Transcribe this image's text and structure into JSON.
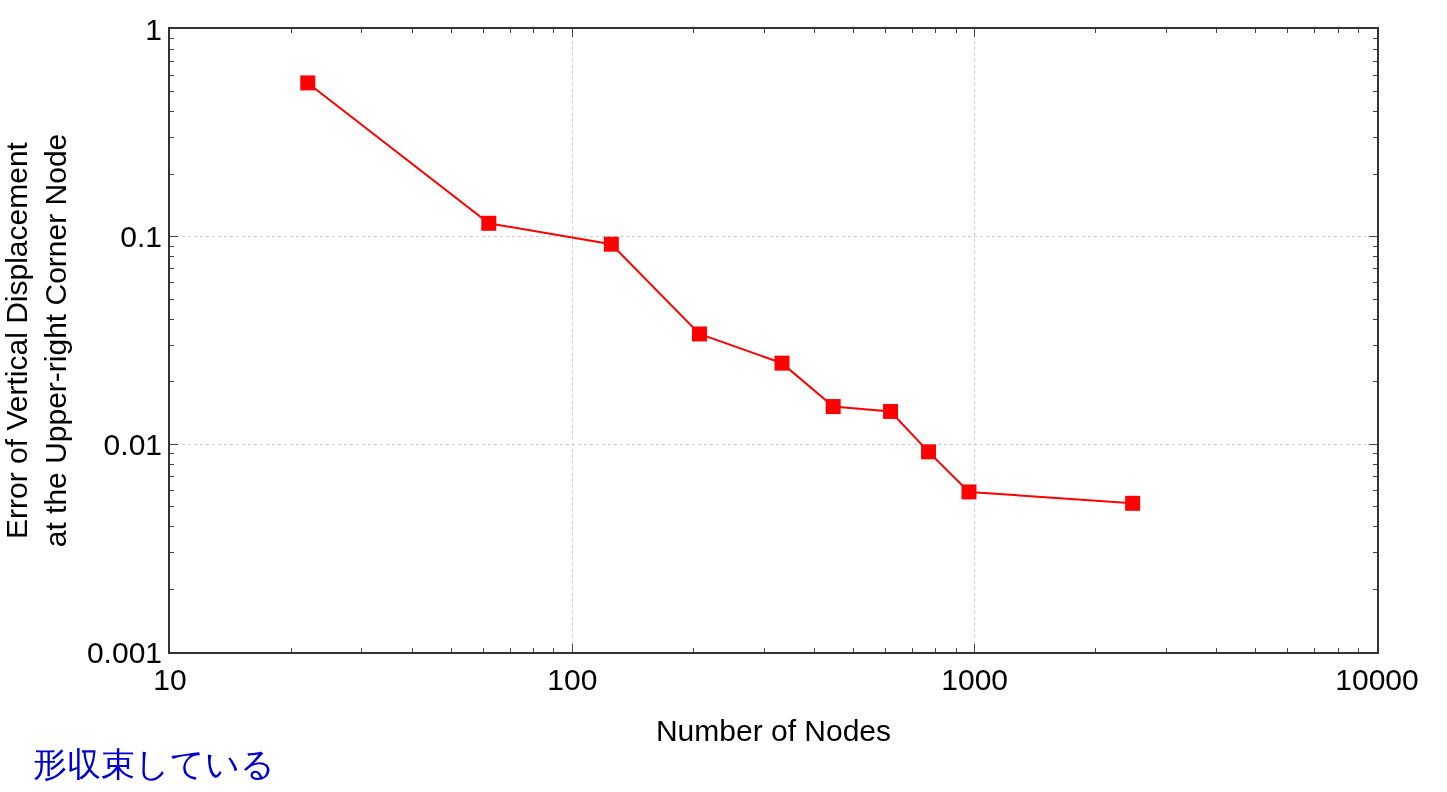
{
  "chart_data": {
    "type": "line",
    "xlabel": "Number of Nodes",
    "ylabel": "Error of Vertical Displacement\nat the Upper-right Corner Node",
    "x": [
      22,
      62,
      125,
      207,
      332,
      445,
      618,
      768,
      968,
      2470
    ],
    "series": [
      {
        "color": "#ff0000",
        "values": [
          0.55,
          0.116,
          0.092,
          0.034,
          0.0246,
          0.0152,
          0.0144,
          0.0092,
          0.0059,
          0.0052
        ]
      }
    ],
    "log": "xy",
    "xlim": [
      10,
      10000
    ],
    "xticks": [
      10,
      100,
      1000,
      10000
    ],
    "ylim": [
      0.001,
      1
    ],
    "yticks": [
      0.001,
      0.01,
      0.1,
      1
    ],
    "grid": true,
    "marker": "square",
    "line_style": "solid",
    "annotations": [
      "形収束している"
    ]
  }
}
